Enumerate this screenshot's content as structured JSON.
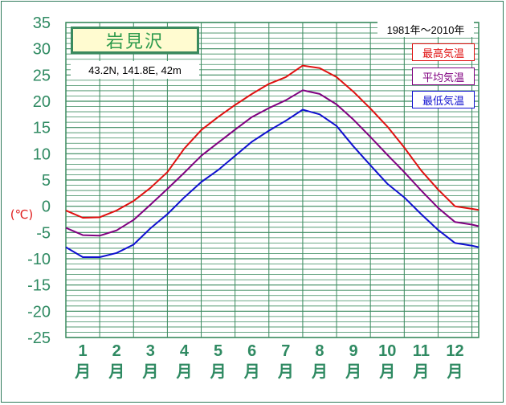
{
  "station": {
    "name": "岩見沢",
    "coords": "43.2N,  141.8E,  42m",
    "period": "1981年〜2010年"
  },
  "axis": {
    "unit_label": "(℃)"
  },
  "colors": {
    "grid": "#3a8a5e",
    "axis_text": "#2f8a62",
    "max": "#e01010",
    "mean": "#800080",
    "min": "#1010d0"
  },
  "chart_data": {
    "type": "line",
    "x_tick_labels": [
      "1",
      "2",
      "3",
      "4",
      "5",
      "6",
      "7",
      "8",
      "9",
      "10",
      "11",
      "12"
    ],
    "x_tick_suffix": "月",
    "xlim": [
      0.5,
      12.7
    ],
    "ylim": [
      -25,
      35
    ],
    "y_ticks": [
      35,
      30,
      25,
      20,
      15,
      10,
      5,
      0,
      -5,
      -10,
      -15,
      -20,
      -25
    ],
    "ylabel": "(℃)",
    "grid": true,
    "legend_position": "top-right",
    "series": [
      {
        "name": "最高気温",
        "color": "#e01010",
        "x": [
          0.5,
          1.0,
          1.5,
          2.0,
          2.5,
          3.0,
          3.5,
          4.0,
          4.5,
          5.0,
          5.5,
          6.0,
          6.5,
          7.0,
          7.5,
          8.0,
          8.5,
          9.0,
          9.5,
          10.0,
          10.5,
          11.0,
          11.5,
          12.0,
          12.5,
          12.7
        ],
        "values": [
          -0.8,
          -2.2,
          -2.1,
          -0.8,
          1.0,
          3.5,
          6.5,
          11.0,
          14.5,
          17.0,
          19.3,
          21.4,
          23.3,
          24.6,
          26.8,
          26.3,
          24.6,
          21.8,
          18.6,
          15.2,
          11.2,
          6.8,
          3.2,
          0.0,
          -0.5,
          -0.7
        ]
      },
      {
        "name": "平均気温",
        "color": "#800080",
        "x": [
          0.5,
          1.0,
          1.5,
          2.0,
          2.5,
          3.0,
          3.5,
          4.0,
          4.5,
          5.0,
          5.5,
          6.0,
          6.5,
          7.0,
          7.5,
          8.0,
          8.5,
          9.0,
          9.5,
          10.0,
          10.5,
          11.0,
          11.5,
          12.0,
          12.5,
          12.7
        ],
        "values": [
          -4.1,
          -5.5,
          -5.6,
          -4.6,
          -2.6,
          0.3,
          3.3,
          6.4,
          9.6,
          12.1,
          14.6,
          17.0,
          18.7,
          20.2,
          22.1,
          21.4,
          19.4,
          16.5,
          13.2,
          9.8,
          6.5,
          3.0,
          -0.3,
          -3.0,
          -3.5,
          -3.8
        ]
      },
      {
        "name": "最低気温",
        "color": "#1010d0",
        "x": [
          0.5,
          1.0,
          1.5,
          2.0,
          2.5,
          3.0,
          3.5,
          4.0,
          4.5,
          5.0,
          5.5,
          6.0,
          6.5,
          7.0,
          7.5,
          8.0,
          8.5,
          9.0,
          9.5,
          10.0,
          10.5,
          11.0,
          11.5,
          12.0,
          12.5,
          12.7
        ],
        "values": [
          -7.8,
          -9.7,
          -9.7,
          -8.9,
          -7.3,
          -4.2,
          -1.5,
          1.7,
          4.6,
          6.9,
          9.6,
          12.3,
          14.4,
          16.3,
          18.4,
          17.5,
          15.3,
          11.4,
          7.8,
          4.3,
          1.7,
          -1.5,
          -4.5,
          -7.0,
          -7.5,
          -7.8
        ]
      }
    ]
  }
}
